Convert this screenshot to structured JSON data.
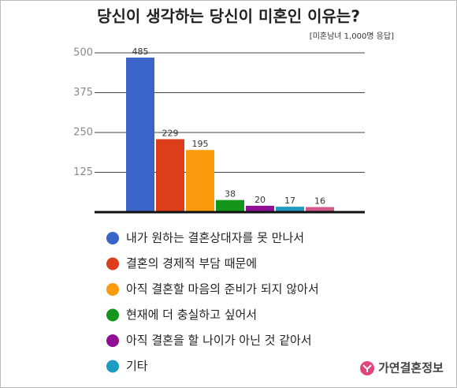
{
  "chart_data": {
    "type": "bar",
    "title": "당신이 생각하는 당신이 미혼인 이유는?",
    "subtitle": "[미혼남녀 1,000명 응답]",
    "categories": [
      "내가 원하는 결혼상대자를 못 만나서",
      "결혼의 경제적 부담 때문에",
      "아직 결혼할 마음의 준비가 되지 않아서",
      "현재에 더 충실하고 싶어서",
      "아직 결혼을 할 나이가 아닌 것 같아서",
      "기타",
      null
    ],
    "values": [
      485,
      229,
      195,
      38,
      20,
      17,
      16
    ],
    "colors": [
      "#3a64c8",
      "#dc3d1a",
      "#fb9a0c",
      "#14951c",
      "#8f0f95",
      "#1e9bc0",
      "#d2598c"
    ],
    "ylim": [
      0,
      500
    ],
    "yticks": [
      125,
      250,
      375,
      500
    ],
    "grid": true
  },
  "brand": "가연결혼정보"
}
